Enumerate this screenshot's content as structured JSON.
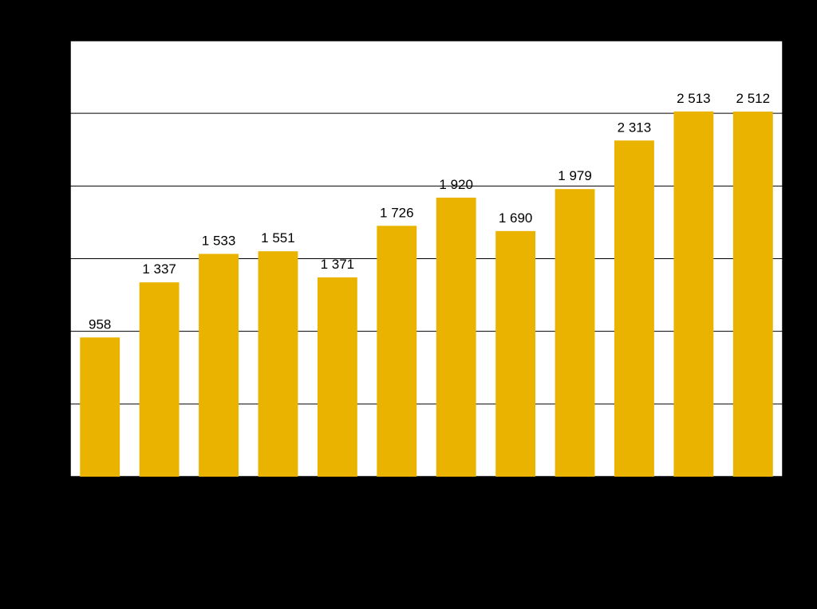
{
  "chart_data": {
    "type": "bar",
    "title": "",
    "xlabel": "",
    "ylabel": "",
    "categories": [
      "",
      "",
      "",
      "",
      "",
      "",
      "",
      "",
      "",
      "",
      "",
      ""
    ],
    "values": [
      958,
      1337,
      1533,
      1551,
      1371,
      1726,
      1920,
      1690,
      1979,
      2313,
      2513,
      2512
    ],
    "value_labels": [
      "958",
      "1 337",
      "1 533",
      "1 551",
      "1 371",
      "1 726",
      "1 920",
      "1 690",
      "1 979",
      "2 313",
      "2 513",
      "2 512"
    ],
    "ylim": [
      0,
      3000
    ],
    "y_gridlines": [
      500,
      1000,
      1500,
      2000,
      2500
    ],
    "grid": true,
    "legend": "none",
    "colors": {
      "bar": "#EAB300",
      "plot_background": "#FFFFFF",
      "page_background": "#000000",
      "gridline": "#000000"
    }
  }
}
